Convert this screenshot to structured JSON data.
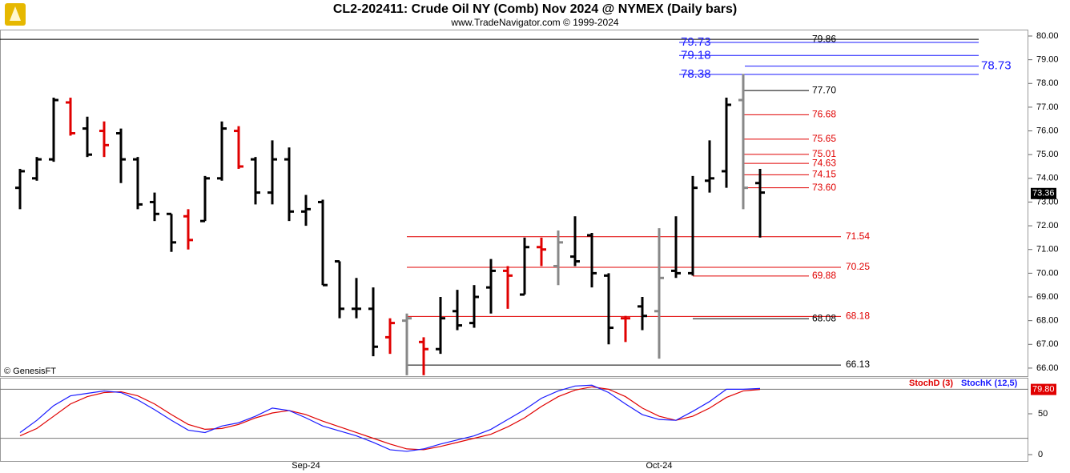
{
  "chart_data": [
    {
      "type": "ohlc",
      "title": "CL2-202411:  Crude Oil NY (Comb) Nov 2024 @ NYMEX  (Daily bars)",
      "subtitle": "www.TradeNavigator.com © 1999-2024",
      "watermark": "© GenesisFT",
      "categories": [
        null,
        null,
        null,
        null,
        null,
        null,
        null,
        null,
        null,
        null,
        null,
        null,
        null,
        null,
        null,
        null,
        null,
        "Sep-24",
        null,
        null,
        null,
        null,
        null,
        null,
        null,
        null,
        null,
        null,
        null,
        null,
        null,
        null,
        null,
        null,
        null,
        null,
        null,
        null,
        "Oct-24",
        null,
        null,
        null,
        null,
        null,
        null
      ],
      "open": [
        73.6,
        74.0,
        74.8,
        77.2,
        76.1,
        76.0,
        75.9,
        74.8,
        73.0,
        72.5,
        72.4,
        72.2,
        74.0,
        76.0,
        74.8,
        73.4,
        74.8,
        72.6,
        73.0,
        70.5,
        68.5,
        68.5,
        67.3,
        68.0,
        67.1,
        66.8,
        68.4,
        67.9,
        69.4,
        70.1,
        69.1,
        71.1,
        70.3,
        70.7,
        71.6,
        69.9,
        68.1,
        68.6,
        68.4,
        70.1,
        70.0,
        73.9,
        74.3,
        77.3,
        73.8
      ],
      "high": [
        74.4,
        74.9,
        77.4,
        77.4,
        76.6,
        76.4,
        76.1,
        74.9,
        73.4,
        72.5,
        72.7,
        74.1,
        76.4,
        76.2,
        74.9,
        75.6,
        75.3,
        73.3,
        73.1,
        70.5,
        69.8,
        69.4,
        68.1,
        68.3,
        67.3,
        69.0,
        69.3,
        69.5,
        70.6,
        70.3,
        71.5,
        71.5,
        71.8,
        72.4,
        71.7,
        70.0,
        68.2,
        69.0,
        71.9,
        72.4,
        74.1,
        75.6,
        77.4,
        78.4,
        74.4
      ],
      "low": [
        72.7,
        73.9,
        74.7,
        75.8,
        74.9,
        74.9,
        73.8,
        72.7,
        72.2,
        70.9,
        71.0,
        72.2,
        73.9,
        74.4,
        72.9,
        72.9,
        72.2,
        72.0,
        69.5,
        68.1,
        68.1,
        66.5,
        66.6,
        65.7,
        65.7,
        66.6,
        67.6,
        67.7,
        68.3,
        68.5,
        69.1,
        70.3,
        69.5,
        70.3,
        69.4,
        67.0,
        67.1,
        67.6,
        66.4,
        69.8,
        69.9,
        73.4,
        73.6,
        72.7,
        71.5
      ],
      "close": [
        74.3,
        74.8,
        77.3,
        75.9,
        75.0,
        75.4,
        74.8,
        72.9,
        72.5,
        71.3,
        71.4,
        74.0,
        76.1,
        74.5,
        73.4,
        74.8,
        72.6,
        72.7,
        69.5,
        68.5,
        68.5,
        66.9,
        67.9,
        68.1,
        66.8,
        68.1,
        67.8,
        69.0,
        70.1,
        69.9,
        71.1,
        71.0,
        71.3,
        70.5,
        70.0,
        67.7,
        68.1,
        68.2,
        69.8,
        70.0,
        73.6,
        74.0,
        77.1,
        73.6,
        73.4
      ],
      "colors": [
        "#000",
        "#000",
        "#000",
        "#e00000",
        "#000",
        "#e00000",
        "#000",
        "#000",
        "#000",
        "#000",
        "#e00000",
        "#000",
        "#000",
        "#e00000",
        "#000",
        "#000",
        "#000",
        "#000",
        "#000",
        "#000",
        "#000",
        "#000",
        "#e00000",
        "#888",
        "#e00000",
        "#000",
        "#000",
        "#000",
        "#000",
        "#e00000",
        "#000",
        "#e00000",
        "#888",
        "#000",
        "#000",
        "#000",
        "#e00000",
        "#000",
        "#888",
        "#000",
        "#000",
        "#000",
        "#000",
        "#888",
        "#000"
      ],
      "ylim": [
        65.66,
        80.27
      ],
      "yticks": [
        {
          "value": 80,
          "label": "80.00"
        },
        {
          "value": 79,
          "label": "79.00"
        },
        {
          "value": 78,
          "label": "78.00"
        },
        {
          "value": 77,
          "label": "77.00"
        },
        {
          "value": 76,
          "label": "76.00"
        },
        {
          "value": 75,
          "label": "75.00"
        },
        {
          "value": 74,
          "label": "74.00"
        },
        {
          "value": 73,
          "label": "73.00"
        },
        {
          "value": 72,
          "label": "72.00"
        },
        {
          "value": 71,
          "label": "71.00"
        },
        {
          "value": 70,
          "label": "70.00"
        },
        {
          "value": 69,
          "label": "69.00"
        },
        {
          "value": 68,
          "label": "68.00"
        },
        {
          "value": 67,
          "label": "67.00"
        },
        {
          "value": 66,
          "label": "66.00"
        }
      ],
      "levels": [
        {
          "value": 79.86,
          "color": "#000"
        },
        {
          "value": 79.73,
          "color": "#1a1aff"
        },
        {
          "value": 79.18,
          "color": "#1a1aff"
        },
        {
          "value": 78.73,
          "color": "#1a1aff"
        },
        {
          "value": 78.38,
          "color": "#1a1aff"
        },
        {
          "value": 77.7,
          "label": "77.70",
          "color": "#000"
        },
        {
          "value": 76.68,
          "color": "#e00000"
        },
        {
          "value": 75.65,
          "color": "#e00000"
        },
        {
          "value": 75.01,
          "color": "#e00000"
        },
        {
          "value": 74.63,
          "color": "#e00000"
        },
        {
          "value": 74.15,
          "color": "#e00000"
        },
        {
          "value": 73.6,
          "label": "73.60",
          "color": "#e00000"
        },
        {
          "value": 71.54,
          "color": "#e00000"
        },
        {
          "value": 70.25,
          "color": "#e00000"
        },
        {
          "value": 69.88,
          "color": "#e00000"
        },
        {
          "value": 68.18,
          "color": "#e00000"
        },
        {
          "value": 68.08,
          "color": "#000"
        },
        {
          "value": 66.13,
          "color": "#000"
        }
      ],
      "last_price": 73.36
    },
    {
      "type": "line",
      "series": [
        {
          "name": "StochD (3)",
          "color": "#e00000",
          "values": [
            23,
            32,
            47,
            62,
            71,
            76,
            77,
            72,
            62,
            49,
            37,
            31,
            32,
            37,
            45,
            51,
            54,
            49,
            41,
            34,
            27,
            20,
            13,
            7,
            6,
            10,
            15,
            20,
            25,
            34,
            45,
            59,
            71,
            79,
            83,
            80,
            71,
            57,
            47,
            42,
            47,
            57,
            70,
            78,
            79.8
          ],
          "value_labels": [
            null,
            null,
            null,
            null,
            null,
            null,
            null,
            null,
            null,
            null,
            null,
            null,
            null,
            null,
            null,
            null,
            null,
            null,
            null,
            null,
            null,
            null,
            null,
            null,
            null,
            null,
            null,
            null,
            null,
            null,
            null,
            null,
            null,
            null,
            null,
            null,
            null,
            null,
            null,
            null,
            null,
            null,
            null,
            null,
            "79.80"
          ]
        },
        {
          "name": "StochK (12,5)",
          "color": "#1a1aff",
          "values": [
            27,
            42,
            60,
            72,
            75,
            78,
            76,
            67,
            55,
            42,
            30,
            27,
            35,
            39,
            47,
            57,
            54,
            45,
            35,
            29,
            23,
            15,
            6,
            4,
            7,
            13,
            18,
            23,
            31,
            43,
            55,
            69,
            78,
            84,
            85,
            76,
            62,
            49,
            43,
            42,
            53,
            65,
            80,
            80,
            81
          ]
        }
      ],
      "ylim": [
        -7.8,
        94.1
      ],
      "yticks": [
        0,
        50
      ],
      "hlines": [
        80,
        20
      ]
    }
  ]
}
